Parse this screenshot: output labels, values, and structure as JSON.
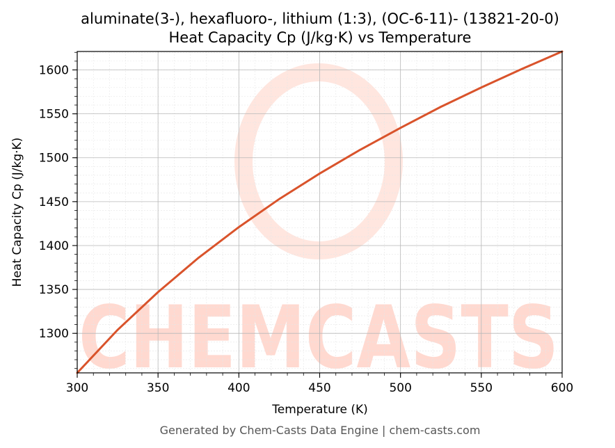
{
  "chart_data": {
    "type": "line",
    "title": "aluminate(3-), hexafluoro-, lithium (1:3), (OC-6-11)- (13821-20-0)",
    "subtitle": "Heat Capacity Cp (J/kg·K) vs Temperature",
    "xlabel": "Temperature (K)",
    "ylabel": "Heat Capacity Cp (J/kg·K)",
    "xlim": [
      300,
      600
    ],
    "ylim": [
      1255,
      1621
    ],
    "xticks": [
      300,
      350,
      400,
      450,
      500,
      550,
      600
    ],
    "yticks": [
      1300,
      1350,
      1400,
      1450,
      1500,
      1550,
      1600
    ],
    "grid": true,
    "line_color": "#d9532b",
    "series": [
      {
        "x": [
          300,
          325,
          350,
          375,
          400,
          425,
          450,
          475,
          500,
          525,
          550,
          575,
          600
        ],
        "values": [
          1255,
          1304,
          1347,
          1386,
          1421,
          1453,
          1482,
          1509,
          1534,
          1558,
          1580,
          1601,
          1621
        ]
      }
    ]
  },
  "watermark": {
    "text": "CHEMCASTS",
    "color": "#ffd9d0"
  },
  "footer": "Generated by Chem-Casts Data Engine | chem-casts.com"
}
